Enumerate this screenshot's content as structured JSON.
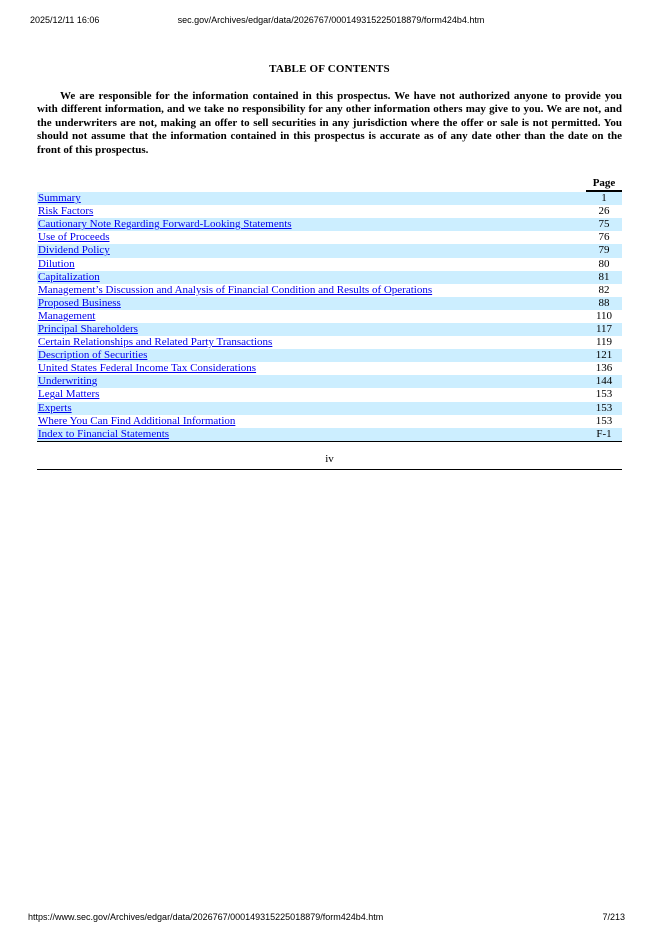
{
  "header": {
    "datetime": "2025/12/11 16:06",
    "url": "sec.gov/Archives/edgar/data/2026767/000149315225018879/form424b4.htm"
  },
  "title": "TABLE OF CONTENTS",
  "intro": "We are responsible for the information contained in this prospectus. We have not authorized anyone to provide you with different information, and we take no responsibility for any other information others may give to you. We are not, and the underwriters are not, making an offer to sell securities in any jurisdiction where the offer or sale is not permitted. You should not assume that the information contained in this prospectus is accurate as of any date other than the date on the front of this prospectus.",
  "toc": {
    "page_header": "Page",
    "entries": [
      {
        "label": "Summary",
        "page": "1"
      },
      {
        "label": "Risk Factors",
        "page": "26"
      },
      {
        "label": "Cautionary Note Regarding Forward-Looking Statements",
        "page": "75"
      },
      {
        "label": "Use of Proceeds",
        "page": "76"
      },
      {
        "label": "Dividend Policy",
        "page": "79"
      },
      {
        "label": "Dilution",
        "page": "80"
      },
      {
        "label": "Capitalization",
        "page": "81"
      },
      {
        "label": "Management’s Discussion and Analysis of Financial Condition and Results of Operations",
        "page": "82"
      },
      {
        "label": "Proposed Business",
        "page": "88"
      },
      {
        "label": "Management",
        "page": "110"
      },
      {
        "label": "Principal Shareholders",
        "page": "117"
      },
      {
        "label": "Certain Relationships and Related Party Transactions",
        "page": "119"
      },
      {
        "label": "Description of Securities",
        "page": "121"
      },
      {
        "label": "United States Federal Income Tax Considerations",
        "page": "136"
      },
      {
        "label": "Underwriting",
        "page": "144"
      },
      {
        "label": "Legal Matters",
        "page": "153"
      },
      {
        "label": "Experts",
        "page": "153"
      },
      {
        "label": "Where You Can Find Additional Information",
        "page": "153"
      },
      {
        "label": "Index to Financial Statements",
        "page": "F-1"
      }
    ]
  },
  "folio": "iv",
  "footer": {
    "url": "https://www.sec.gov/Archives/edgar/data/2026767/000149315225018879/form424b4.htm",
    "page": "7/213"
  },
  "colors": {
    "row_highlight": "#cceeff",
    "link": "#0000ee"
  }
}
